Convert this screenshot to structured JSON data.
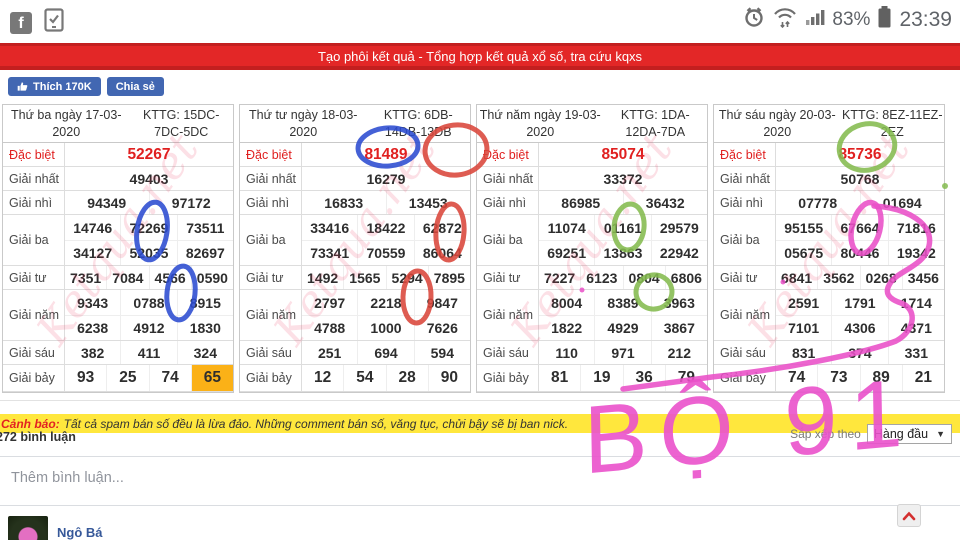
{
  "status_bar": {
    "battery_pct": "83%",
    "time": "23:39"
  },
  "banner": {
    "text": "Tạo phôi kết quả - Tổng hợp kết quả xổ số, tra cứu kqxs"
  },
  "fb_bar": {
    "like_label": "Thích 170K",
    "share_label": "Chia sẻ"
  },
  "prize_labels": [
    "Đặc biệt",
    "Giải nhất",
    "Giải nhì",
    "Giải ba",
    "Giải tư",
    "Giải năm",
    "Giải sáu",
    "Giải bảy"
  ],
  "tables": [
    {
      "date": "Thứ ba ngày 17-03-2020",
      "kttg": "KTTG: 15DC-7DC-5DC",
      "special": "52267",
      "first": "49403",
      "second": [
        "94349",
        "97172"
      ],
      "third": [
        [
          "14746",
          "72269",
          "73511"
        ],
        [
          "34127",
          "52035",
          "82697"
        ]
      ],
      "fourth": [
        "7351",
        "7084",
        "4566",
        "0590"
      ],
      "fifth": [
        [
          "9343",
          "0788",
          "8915"
        ],
        [
          "6238",
          "4912",
          "1830"
        ]
      ],
      "sixth": [
        "382",
        "411",
        "324"
      ],
      "seventh": [
        "93",
        "25",
        "74",
        "65"
      ]
    },
    {
      "date": "Thứ tư ngày 18-03-2020",
      "kttg": "KTTG: 6DB-14DB-13DB",
      "special": "81489",
      "first": "16279",
      "second": [
        "16833",
        "13453"
      ],
      "third": [
        [
          "33416",
          "18422",
          "62872"
        ],
        [
          "73341",
          "70559",
          "86064"
        ]
      ],
      "fourth": [
        "1492",
        "1565",
        "5294",
        "7895"
      ],
      "fifth": [
        [
          "2797",
          "2218",
          "9847"
        ],
        [
          "4788",
          "1000",
          "7626"
        ]
      ],
      "sixth": [
        "251",
        "694",
        "594"
      ],
      "seventh": [
        "12",
        "54",
        "28",
        "90"
      ]
    },
    {
      "date": "Thứ năm ngày 19-03-2020",
      "kttg": "KTTG: 1DA-12DA-7DA",
      "special": "85074",
      "first": "33372",
      "second": [
        "86985",
        "36432"
      ],
      "third": [
        [
          "11074",
          "01161",
          "29579"
        ],
        [
          "69251",
          "13863",
          "22942"
        ]
      ],
      "fourth": [
        "7227",
        "6123",
        "0804",
        "6806"
      ],
      "fifth": [
        [
          "8004",
          "8389",
          "3963"
        ],
        [
          "1822",
          "4929",
          "3867"
        ]
      ],
      "sixth": [
        "110",
        "971",
        "212"
      ],
      "seventh": [
        "81",
        "19",
        "36",
        "79"
      ]
    },
    {
      "date": "Thứ sáu ngày 20-03-2020",
      "kttg": "KTTG: 8EZ-11EZ-2EZ",
      "special": "85736",
      "first": "50768",
      "second": [
        "07778",
        "01694"
      ],
      "third": [
        [
          "95155",
          "67664",
          "71816"
        ],
        [
          "05675",
          "80446",
          "19342"
        ]
      ],
      "fourth": [
        "6841",
        "3562",
        "0268",
        "3456"
      ],
      "fifth": [
        [
          "2591",
          "1791",
          "1714"
        ],
        [
          "7101",
          "4306",
          "4371"
        ]
      ],
      "sixth": [
        "831",
        "374",
        "331"
      ],
      "seventh": [
        "74",
        "73",
        "89",
        "21"
      ]
    }
  ],
  "highlight": {
    "table": 0,
    "row_index": 7,
    "line_index": 0,
    "value_index": 3
  },
  "watermark": "Ketqua.net",
  "warning": {
    "label": "Cảnh báo:",
    "text": "Tất cả spam bán số đều là lừa đảo. Những comment bán số, văng tục, chửi bậy sẽ bị ban nick."
  },
  "comments": {
    "count_label": "272 bình luận",
    "sort_label": "Sắp xếp theo",
    "sort_value": "Hàng đầu",
    "placeholder": "Thêm bình luận...",
    "first_commenter": "Ngô Bá"
  },
  "annotations": {
    "handwritten_text": "BỘ 91"
  },
  "colors": {
    "banner_red": "#e32727",
    "special_red": "#e02020",
    "highlight_amber": "#fbb117",
    "warning_yellow": "#ffe73d",
    "marker_blue": "#2b4bd0",
    "marker_red": "#d9453a",
    "marker_green": "#84bb4f",
    "marker_pink": "#e94fc7",
    "fb_blue": "#4267b2",
    "name_blue": "#365899"
  }
}
